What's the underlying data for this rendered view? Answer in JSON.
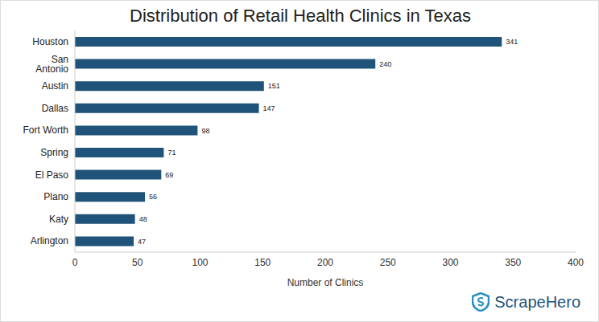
{
  "chart_data": {
    "type": "bar",
    "title": "Distribution of Retail Health Clinics in Texas",
    "x_label": "Number of Clinics",
    "categories": [
      "Houston",
      "San Antonio",
      "Austin",
      "Dallas",
      "Fort Worth",
      "Spring",
      "El Paso",
      "Plano",
      "Katy",
      "Arlington"
    ],
    "values": [
      341,
      240,
      151,
      147,
      98,
      71,
      69,
      56,
      48,
      47
    ],
    "color": "#1f5379",
    "orientation": "horizontal",
    "xlim": [
      0,
      400
    ],
    "xticks": [
      0,
      50,
      100,
      150,
      200,
      250,
      300,
      350,
      400
    ],
    "grid": false,
    "data_labels": true,
    "annotations": [
      "ScrapeHero"
    ]
  }
}
